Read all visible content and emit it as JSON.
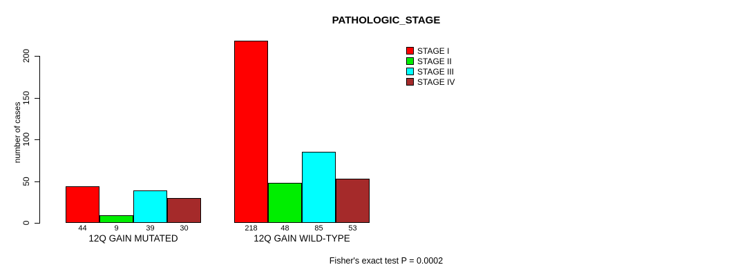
{
  "chart_data": {
    "type": "bar",
    "title": "PATHOLOGIC_STAGE",
    "xlabel": "",
    "ylabel": "number of cases",
    "categories": [
      "12Q GAIN MUTATED",
      "12Q GAIN WILD-TYPE"
    ],
    "series": [
      {
        "name": "STAGE I",
        "color": "#ff0000",
        "values": [
          44,
          218
        ]
      },
      {
        "name": "STAGE II",
        "color": "#00ee00",
        "values": [
          9,
          48
        ]
      },
      {
        "name": "STAGE III",
        "color": "#00ffff",
        "values": [
          39,
          85
        ]
      },
      {
        "name": "STAGE IV",
        "color": "#a52a2a",
        "values": [
          30,
          53
        ]
      }
    ],
    "yticks": [
      0,
      50,
      100,
      150,
      200
    ],
    "ylim": [
      0,
      200
    ],
    "bar_value_labels_shown": true,
    "grid": false,
    "legend_position": "top-right",
    "annotation": "Fisher's exact test P = 0.0002"
  },
  "colors": {
    "background": "#ffffff",
    "axis": "#000000",
    "text": "#000000",
    "bar_border": "#000000"
  }
}
